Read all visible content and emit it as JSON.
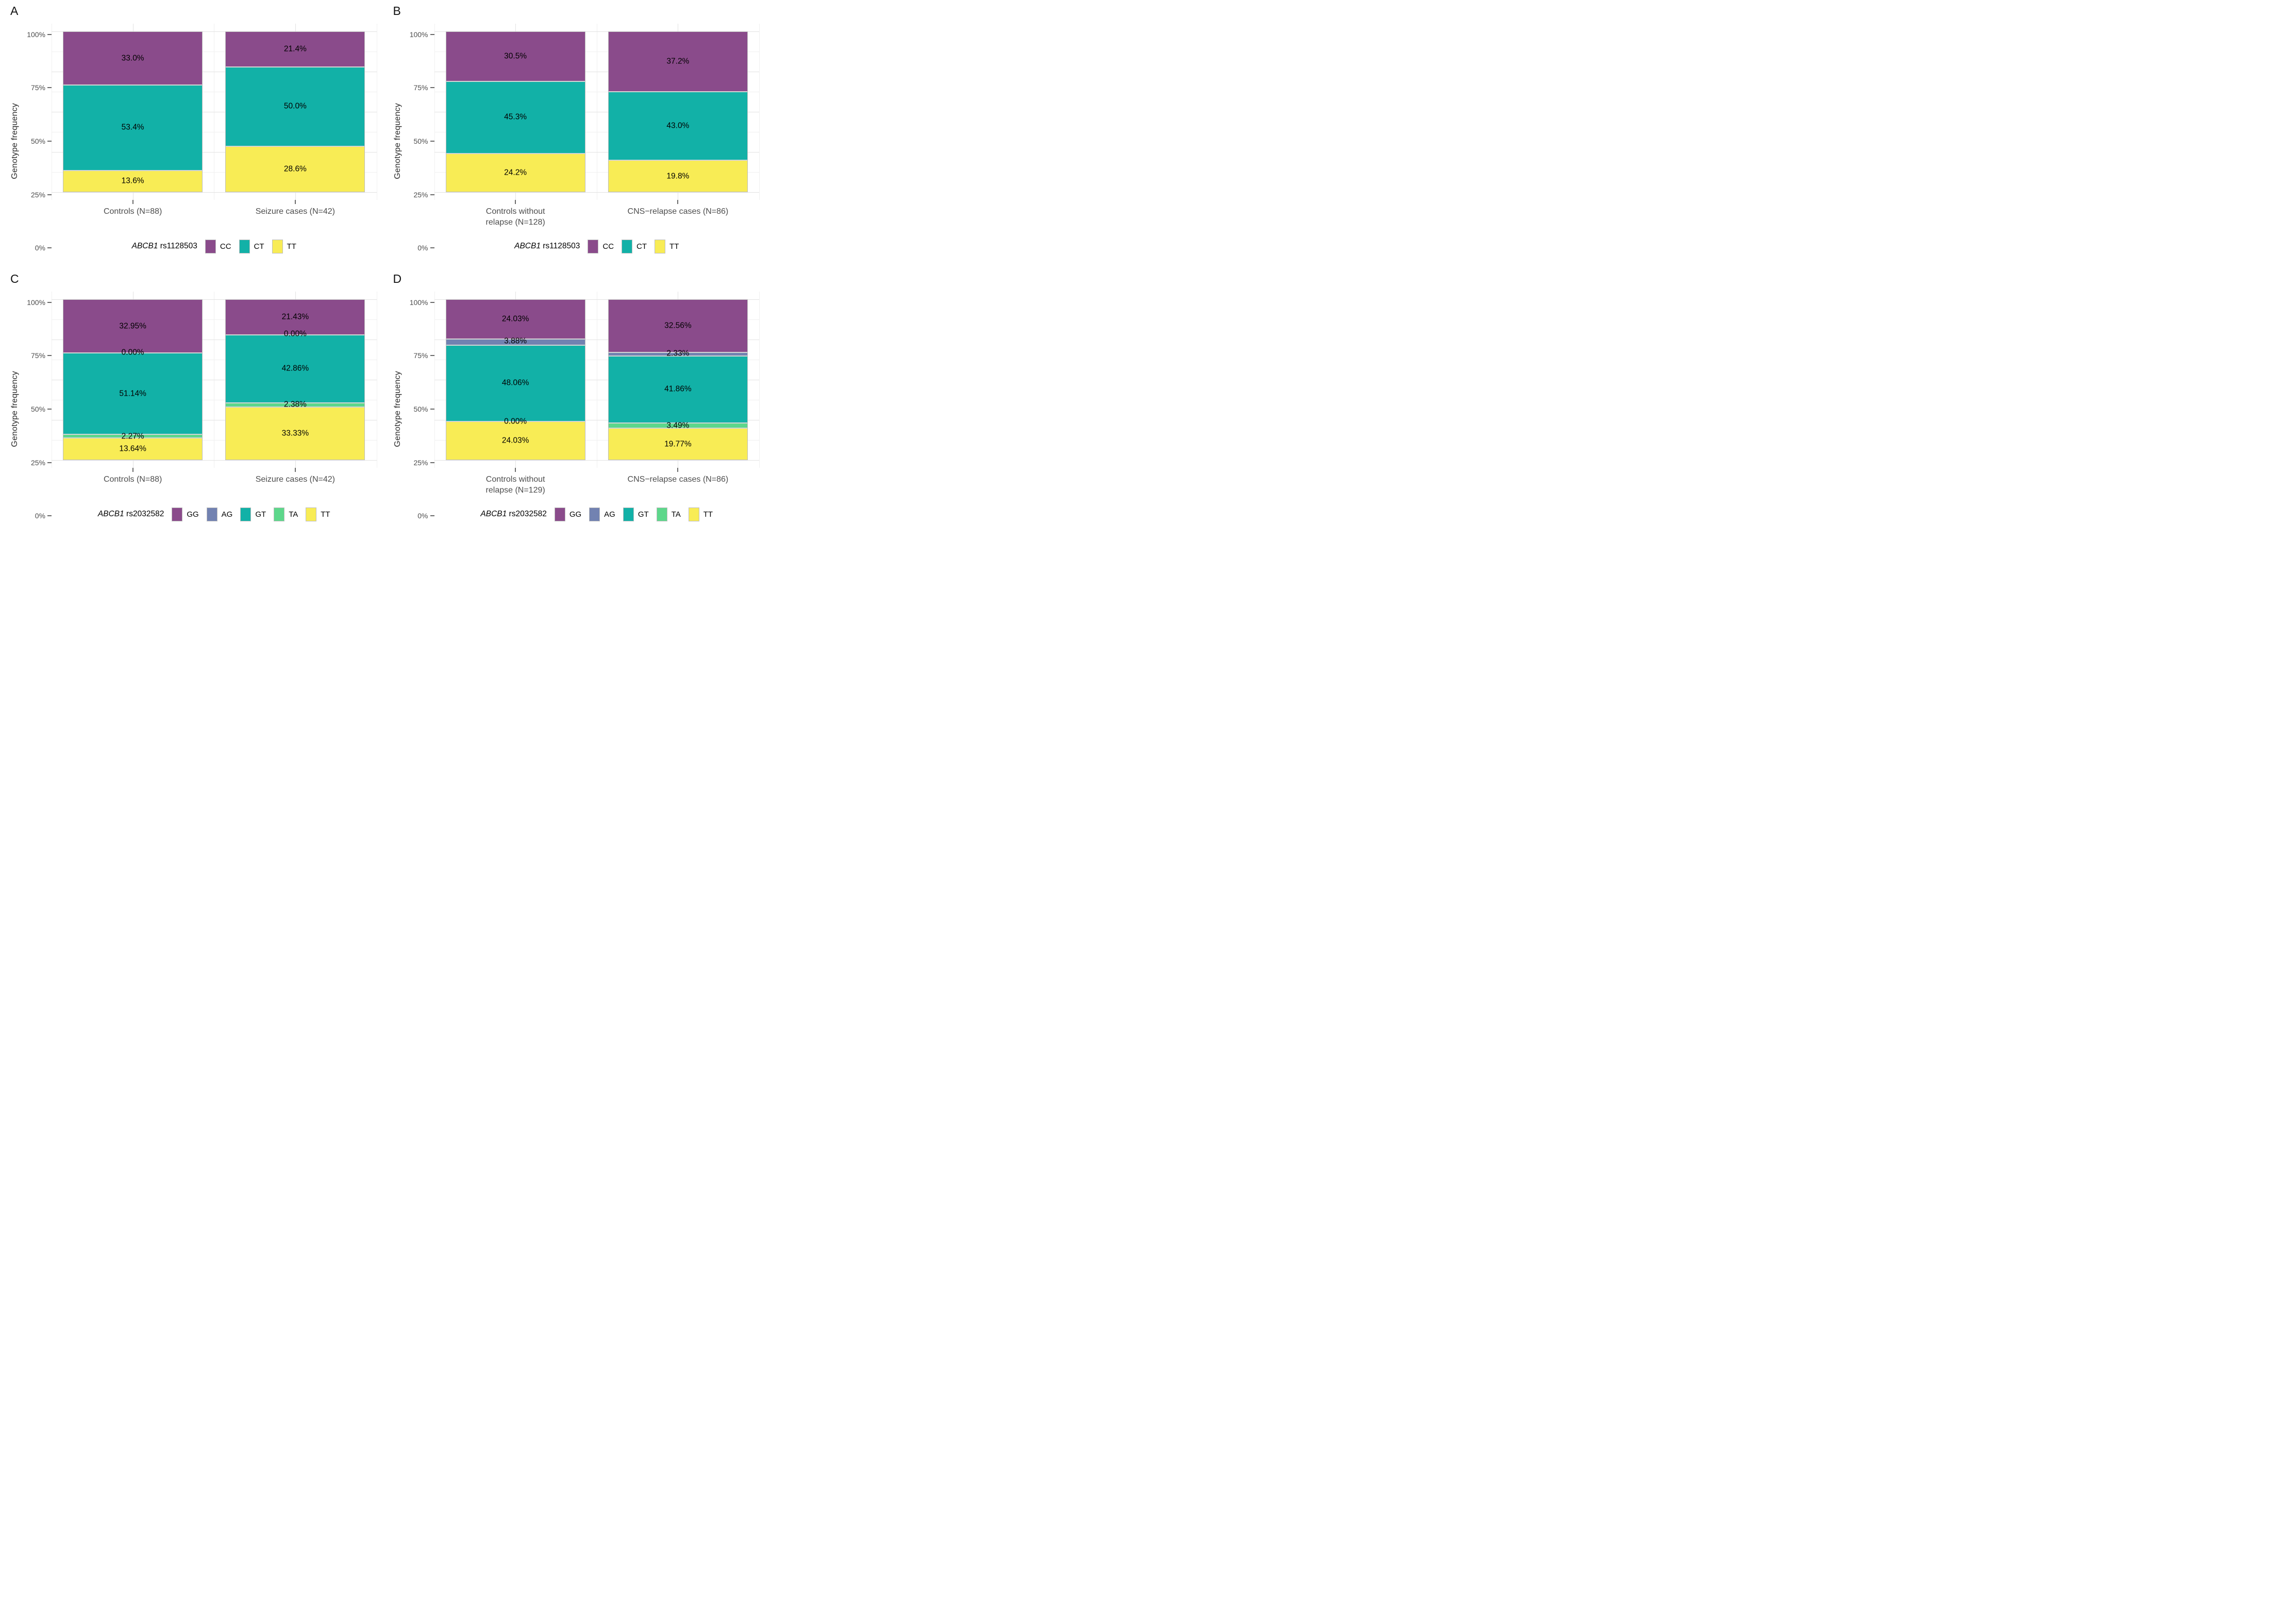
{
  "figure": {
    "background": "#ffffff",
    "ylabel": "Genotype frequency",
    "yticks": [
      {
        "label": "100%",
        "value": 100
      },
      {
        "label": "75%",
        "value": 75
      },
      {
        "label": "50%",
        "value": 50
      },
      {
        "label": "25%",
        "value": 25
      },
      {
        "label": "0%",
        "value": 0
      }
    ],
    "minor_hgrid_values": [
      87.5,
      62.5,
      37.5,
      12.5
    ],
    "major_vgrid_positions_pct": [
      25,
      75
    ],
    "minor_vgrid_positions_pct": [
      0,
      50,
      100
    ]
  },
  "palette": {
    "purple": "#8a4b8b",
    "teal": "#12b1a7",
    "yellow": "#f8ec55",
    "slate_blue": "#7282b1",
    "green": "#5dd78b",
    "bar_border": "#bdbdbd",
    "grid_major": "#e2e2e2",
    "grid_minor": "#f0f0f0",
    "axis_text": "#4d4d4d",
    "segment_label_text": "#000000"
  },
  "chart_data": [
    {
      "panel": "A",
      "type": "bar",
      "stacked": true,
      "ylabel": "Genotype frequency",
      "ylim": [
        0,
        100
      ],
      "grid": true,
      "legend_position": "bottom",
      "legend_title_gene": "ABCB1",
      "legend_title_snp": "rs1128503",
      "legend": [
        {
          "label": "CC",
          "color_key": "purple"
        },
        {
          "label": "CT",
          "color_key": "teal"
        },
        {
          "label": "TT",
          "color_key": "yellow"
        }
      ],
      "categories": [
        "Controls (N=88)",
        "Seizure cases (N=42)"
      ],
      "category_lines": [
        [
          "Controls (N=88)"
        ],
        [
          "Seizure cases (N=42)"
        ]
      ],
      "series": [
        {
          "name": "CC",
          "color_key": "purple",
          "values": [
            33.0,
            21.4
          ],
          "labels": [
            "33.0%",
            "21.4%"
          ]
        },
        {
          "name": "CT",
          "color_key": "teal",
          "values": [
            53.4,
            50.0
          ],
          "labels": [
            "53.4%",
            "50.0%"
          ]
        },
        {
          "name": "TT",
          "color_key": "yellow",
          "values": [
            13.6,
            28.6
          ],
          "labels": [
            "13.6%",
            "28.6%"
          ]
        }
      ]
    },
    {
      "panel": "B",
      "type": "bar",
      "stacked": true,
      "ylabel": "Genotype frequency",
      "ylim": [
        0,
        100
      ],
      "grid": true,
      "legend_position": "bottom",
      "legend_title_gene": "ABCB1",
      "legend_title_snp": "rs1128503",
      "legend": [
        {
          "label": "CC",
          "color_key": "purple"
        },
        {
          "label": "CT",
          "color_key": "teal"
        },
        {
          "label": "TT",
          "color_key": "yellow"
        }
      ],
      "categories": [
        "Controls without relapse (N=128)",
        "CNS−relapse cases (N=86)"
      ],
      "category_lines": [
        [
          "Controls without",
          "relapse (N=128)"
        ],
        [
          "CNS−relapse cases (N=86)"
        ]
      ],
      "series": [
        {
          "name": "CC",
          "color_key": "purple",
          "values": [
            30.5,
            37.2
          ],
          "labels": [
            "30.5%",
            "37.2%"
          ]
        },
        {
          "name": "CT",
          "color_key": "teal",
          "values": [
            45.3,
            43.0
          ],
          "labels": [
            "45.3%",
            "43.0%"
          ]
        },
        {
          "name": "TT",
          "color_key": "yellow",
          "values": [
            24.2,
            19.8
          ],
          "labels": [
            "24.2%",
            "19.8%"
          ]
        }
      ]
    },
    {
      "panel": "C",
      "type": "bar",
      "stacked": true,
      "ylabel": "Genotype frequency",
      "ylim": [
        0,
        100
      ],
      "grid": true,
      "legend_position": "bottom",
      "legend_title_gene": "ABCB1",
      "legend_title_snp": "rs2032582",
      "legend": [
        {
          "label": "GG",
          "color_key": "purple"
        },
        {
          "label": "AG",
          "color_key": "slate_blue"
        },
        {
          "label": "GT",
          "color_key": "teal"
        },
        {
          "label": "TA",
          "color_key": "green"
        },
        {
          "label": "TT",
          "color_key": "yellow"
        }
      ],
      "categories": [
        "Controls (N=88)",
        "Seizure cases (N=42)"
      ],
      "category_lines": [
        [
          "Controls (N=88)"
        ],
        [
          "Seizure cases (N=42)"
        ]
      ],
      "series": [
        {
          "name": "GG",
          "color_key": "purple",
          "values": [
            32.95,
            21.43
          ],
          "labels": [
            "32.95%",
            "21.43%"
          ]
        },
        {
          "name": "AG",
          "color_key": "slate_blue",
          "values": [
            0.0,
            0.0
          ],
          "labels": [
            "0.00%",
            "0.00%"
          ]
        },
        {
          "name": "GT",
          "color_key": "teal",
          "values": [
            51.14,
            42.86
          ],
          "labels": [
            "51.14%",
            "42.86%"
          ]
        },
        {
          "name": "TA",
          "color_key": "green",
          "values": [
            2.27,
            2.38
          ],
          "labels": [
            "2.27%",
            "2.38%"
          ]
        },
        {
          "name": "TT",
          "color_key": "yellow",
          "values": [
            13.64,
            33.33
          ],
          "labels": [
            "13.64%",
            "33.33%"
          ]
        }
      ]
    },
    {
      "panel": "D",
      "type": "bar",
      "stacked": true,
      "ylabel": "Genotype frequency",
      "ylim": [
        0,
        100
      ],
      "grid": true,
      "legend_position": "bottom",
      "legend_title_gene": "ABCB1",
      "legend_title_snp": "rs2032582",
      "legend": [
        {
          "label": "GG",
          "color_key": "purple"
        },
        {
          "label": "AG",
          "color_key": "slate_blue"
        },
        {
          "label": "GT",
          "color_key": "teal"
        },
        {
          "label": "TA",
          "color_key": "green"
        },
        {
          "label": "TT",
          "color_key": "yellow"
        }
      ],
      "categories": [
        "Controls without relapse (N=129)",
        "CNS−relapse cases (N=86)"
      ],
      "category_lines": [
        [
          "Controls without",
          "relapse (N=129)"
        ],
        [
          "CNS−relapse cases (N=86)"
        ]
      ],
      "series": [
        {
          "name": "GG",
          "color_key": "purple",
          "values": [
            24.03,
            32.56
          ],
          "labels": [
            "24.03%",
            "32.56%"
          ]
        },
        {
          "name": "AG",
          "color_key": "slate_blue",
          "values": [
            3.88,
            2.33
          ],
          "labels": [
            "3.88%",
            "2.33%"
          ]
        },
        {
          "name": "GT",
          "color_key": "teal",
          "values": [
            48.06,
            41.86
          ],
          "labels": [
            "48.06%",
            "41.86%"
          ]
        },
        {
          "name": "TA",
          "color_key": "green",
          "values": [
            0.0,
            3.49
          ],
          "labels": [
            "0.00%",
            "3.49%"
          ]
        },
        {
          "name": "TT",
          "color_key": "yellow",
          "values": [
            24.03,
            19.77
          ],
          "labels": [
            "24.03%",
            "19.77%"
          ]
        }
      ]
    }
  ]
}
